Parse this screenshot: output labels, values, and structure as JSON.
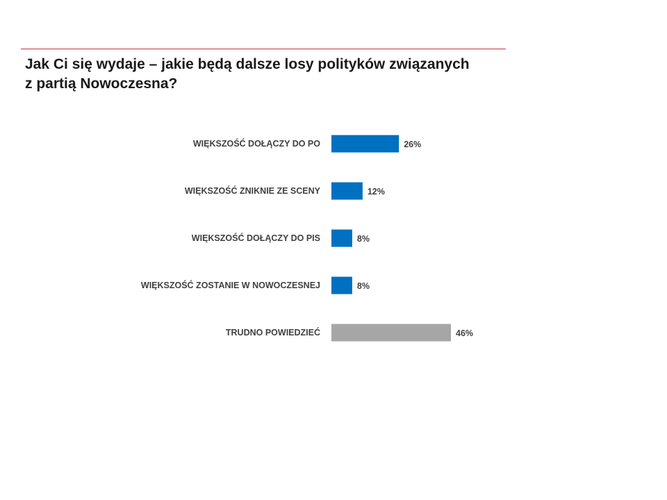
{
  "title": "Jak Ci się wydaje – jakie będą dalsze losy polityków związanych\nz partią Nowoczesna?",
  "colors": {
    "rule": "#c8303a",
    "series_main": "#0070c0",
    "series_neutral": "#a6a6a6",
    "label_text": "#404040"
  },
  "chart_data": {
    "type": "bar",
    "orientation": "horizontal",
    "title": "Jak Ci się wydaje – jakie będą dalsze losy polityków związanych z partią Nowoczesna?",
    "categories": [
      "WIĘKSZOŚĆ DOŁĄCZY DO PO",
      "WIĘKSZOŚĆ ZNIKNIE ZE SCENY",
      "WIĘKSZOŚĆ DOŁĄCZY DO PIS",
      "WIĘKSZOŚĆ ZOSTANIE W NOWOCZESNEJ",
      "TRUDNO POWIEDZIEĆ"
    ],
    "values": [
      26,
      12,
      8,
      8,
      46
    ],
    "value_labels": [
      "26%",
      "12%",
      "8%",
      "8%",
      "46%"
    ],
    "bar_colors": [
      "#0070c0",
      "#0070c0",
      "#0070c0",
      "#0070c0",
      "#a6a6a6"
    ],
    "unit": "%",
    "xlim": [
      0,
      46
    ],
    "grid": false,
    "legend": "none",
    "xlabel": "",
    "ylabel": ""
  }
}
